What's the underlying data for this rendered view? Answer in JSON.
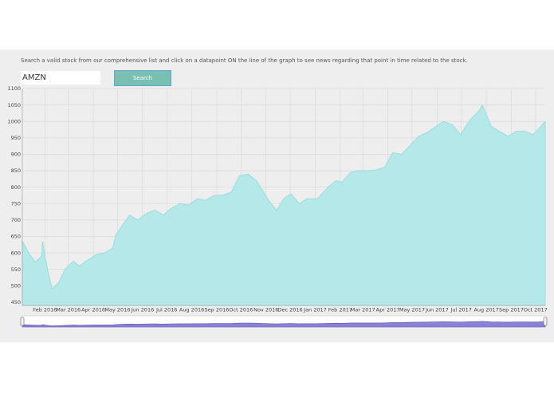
{
  "app": {
    "instructions": "Search a valid stock from our comprehensive list and click on a datapoint ON the line of the graph to see news regarding that point in time related to the stock.",
    "search": {
      "value": "AMZN",
      "button_label": "Search"
    },
    "colors": {
      "area_fill": "#b5e8e8",
      "area_stroke": "#8fd8d8",
      "button": "#79c0b2",
      "navigator": "#8a82d6"
    }
  },
  "chart_data": {
    "type": "area",
    "ylim": [
      440,
      1100
    ],
    "yticks": [
      450,
      500,
      550,
      600,
      650,
      700,
      750,
      800,
      850,
      900,
      950,
      1000,
      1050,
      1100
    ],
    "x_ticks": [
      "Feb 2016",
      "Mar 2016",
      "Apr 2016",
      "May 2016",
      "Jun 2016",
      "Jul 2016",
      "Aug 2016",
      "Sep 2016",
      "Oct 2016",
      "Nov 2016",
      "Dec 2016",
      "Jan 2017",
      "Feb 2017",
      "Mar 2017",
      "Apr 2017",
      "May 2017",
      "Jun 2017",
      "Jul 2017",
      "Aug 2017",
      "Sep 2017",
      "Oct 2017"
    ],
    "x": [
      "2016-01-04",
      "2016-01-12",
      "2016-01-20",
      "2016-01-28",
      "2016-01-29",
      "2016-02-05",
      "2016-02-10",
      "2016-02-18",
      "2016-02-26",
      "2016-03-07",
      "2016-03-15",
      "2016-03-25",
      "2016-04-05",
      "2016-04-15",
      "2016-04-25",
      "2016-04-29",
      "2016-05-06",
      "2016-05-16",
      "2016-05-26",
      "2016-06-06",
      "2016-06-16",
      "2016-06-27",
      "2016-07-06",
      "2016-07-18",
      "2016-07-28",
      "2016-08-08",
      "2016-08-18",
      "2016-08-29",
      "2016-09-08",
      "2016-09-19",
      "2016-09-29",
      "2016-10-10",
      "2016-10-20",
      "2016-10-28",
      "2016-11-04",
      "2016-11-14",
      "2016-11-23",
      "2016-12-02",
      "2016-12-12",
      "2016-12-22",
      "2017-01-04",
      "2017-01-17",
      "2017-01-27",
      "2017-02-03",
      "2017-02-14",
      "2017-02-24",
      "2017-03-06",
      "2017-03-16",
      "2017-03-28",
      "2017-04-07",
      "2017-04-18",
      "2017-04-28",
      "2017-05-09",
      "2017-05-19",
      "2017-05-31",
      "2017-06-09",
      "2017-06-20",
      "2017-06-30",
      "2017-07-12",
      "2017-07-24",
      "2017-07-27",
      "2017-08-07",
      "2017-08-17",
      "2017-08-28",
      "2017-09-07",
      "2017-09-18",
      "2017-09-28",
      "2017-10-06",
      "2017-10-13"
    ],
    "values": [
      636,
      600,
      572,
      590,
      635,
      540,
      490,
      510,
      550,
      575,
      560,
      578,
      595,
      600,
      615,
      655,
      680,
      715,
      700,
      720,
      730,
      715,
      735,
      750,
      745,
      765,
      760,
      775,
      775,
      785,
      835,
      840,
      820,
      790,
      760,
      730,
      765,
      780,
      750,
      765,
      765,
      800,
      820,
      815,
      845,
      850,
      850,
      852,
      860,
      905,
      900,
      925,
      955,
      965,
      985,
      1000,
      990,
      960,
      1005,
      1035,
      1050,
      985,
      970,
      955,
      970,
      970,
      960,
      980,
      1000
    ]
  }
}
